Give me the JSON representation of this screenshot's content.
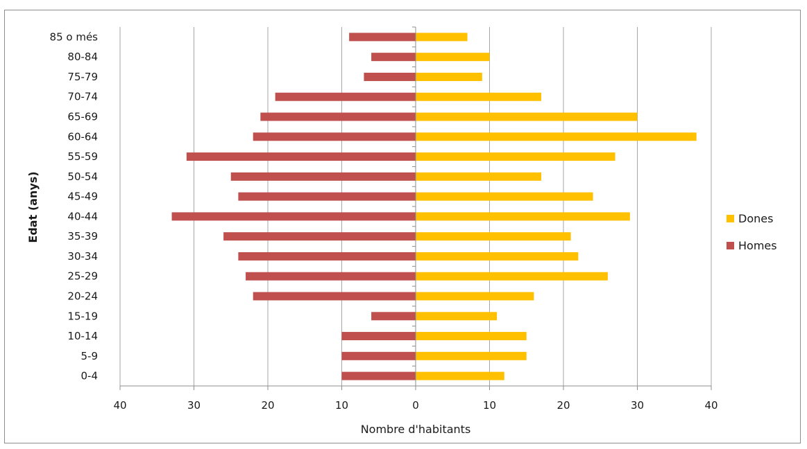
{
  "chart_data": {
    "type": "bar",
    "orientation": "horizontal",
    "subtype": "population-pyramid",
    "title": "",
    "xlabel": "Nombre d'habitants",
    "ylabel": "Edat (anys)",
    "xlim": [
      -40,
      40
    ],
    "x_tick_labels": [
      "40",
      "30",
      "20",
      "10",
      "0",
      "10",
      "20",
      "30",
      "40"
    ],
    "categories": [
      "0-4",
      "5-9",
      "10-14",
      "15-19",
      "20-24",
      "25-29",
      "30-34",
      "35-39",
      "40-44",
      "45-49",
      "50-54",
      "55-59",
      "60-64",
      "65-69",
      "70-74",
      "75-79",
      "80-84",
      "85 o més"
    ],
    "series": [
      {
        "name": "Homes",
        "color": "#c0504d",
        "side": "left",
        "values": [
          10,
          10,
          10,
          6,
          22,
          23,
          24,
          26,
          33,
          24,
          25,
          31,
          22,
          21,
          19,
          7,
          6,
          9
        ]
      },
      {
        "name": "Dones",
        "color": "#ffc000",
        "side": "right",
        "values": [
          12,
          15,
          15,
          11,
          16,
          26,
          22,
          21,
          29,
          24,
          17,
          27,
          38,
          30,
          17,
          9,
          10,
          7
        ]
      }
    ],
    "legend": {
      "position": "right",
      "order": [
        "Dones",
        "Homes"
      ]
    },
    "grid": {
      "vertical": true,
      "horizontal": false,
      "color": "#a6a6a6"
    }
  }
}
